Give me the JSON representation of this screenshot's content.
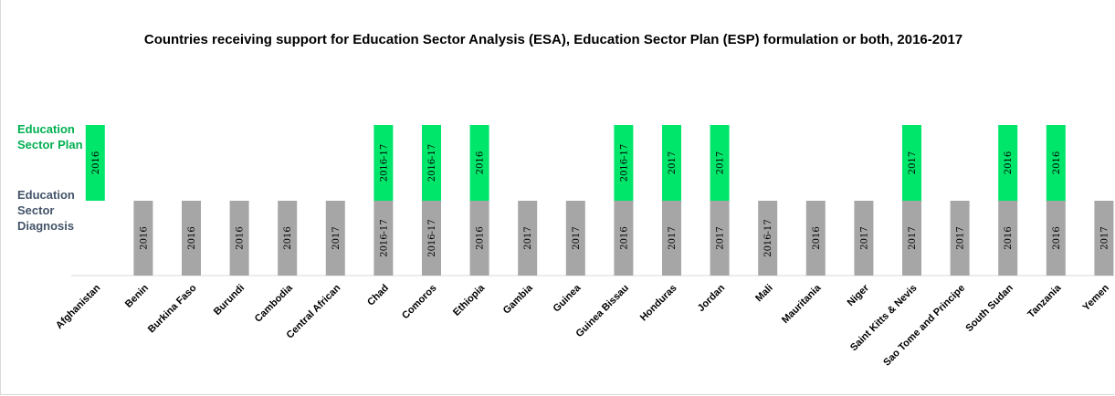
{
  "chart_data": {
    "type": "bar",
    "title": "Countries receiving support for Education Sector Analysis (ESA), Education Sector Plan (ESP) formulation or both, 2016-2017",
    "row_labels": {
      "plan": [
        "Education",
        "Sector Plan"
      ],
      "diagnosis": [
        "Education",
        "Sector",
        "Diagnosis"
      ]
    },
    "categories": [
      "Afghanistan",
      "Benin",
      "Burkina Faso",
      "Burundi",
      "Cambodia",
      "Central African",
      "Chad",
      "Comoros",
      "Ethiopia",
      "Gambia",
      "Guinea",
      "Guinea Bissau",
      "Honduras",
      "Jordan",
      "Mali",
      "Mauritania",
      "Niger",
      "Saint Kitts & Nevis",
      "Sao Tome and Principe",
      "South Sudan",
      "Tanzania",
      "Yemen"
    ],
    "series": [
      {
        "key": "diagnosis",
        "color": "#a6a6a6",
        "labels": [
          "",
          "2016",
          "2016",
          "2016",
          "2016",
          "2017",
          "2016-17",
          "2016-17",
          "2016",
          "2017",
          "2017",
          "2016",
          "2017",
          "2017",
          "2016-17",
          "2016",
          "2017",
          "2017",
          "2017",
          "2016",
          "2016",
          "2017"
        ]
      },
      {
        "key": "plan",
        "color": "#00e66b",
        "labels": [
          "2016",
          "",
          "",
          "",
          "",
          "",
          "2016-17",
          "2016-17",
          "2016",
          "",
          "",
          "2016-17",
          "2017",
          "2017",
          "",
          "",
          "",
          "2017",
          "",
          "2016",
          "2016",
          ""
        ]
      }
    ],
    "colors": {
      "plan_label": "#00b050",
      "diagnosis_label": "#44546a",
      "axis": "#d9d9d9"
    }
  }
}
